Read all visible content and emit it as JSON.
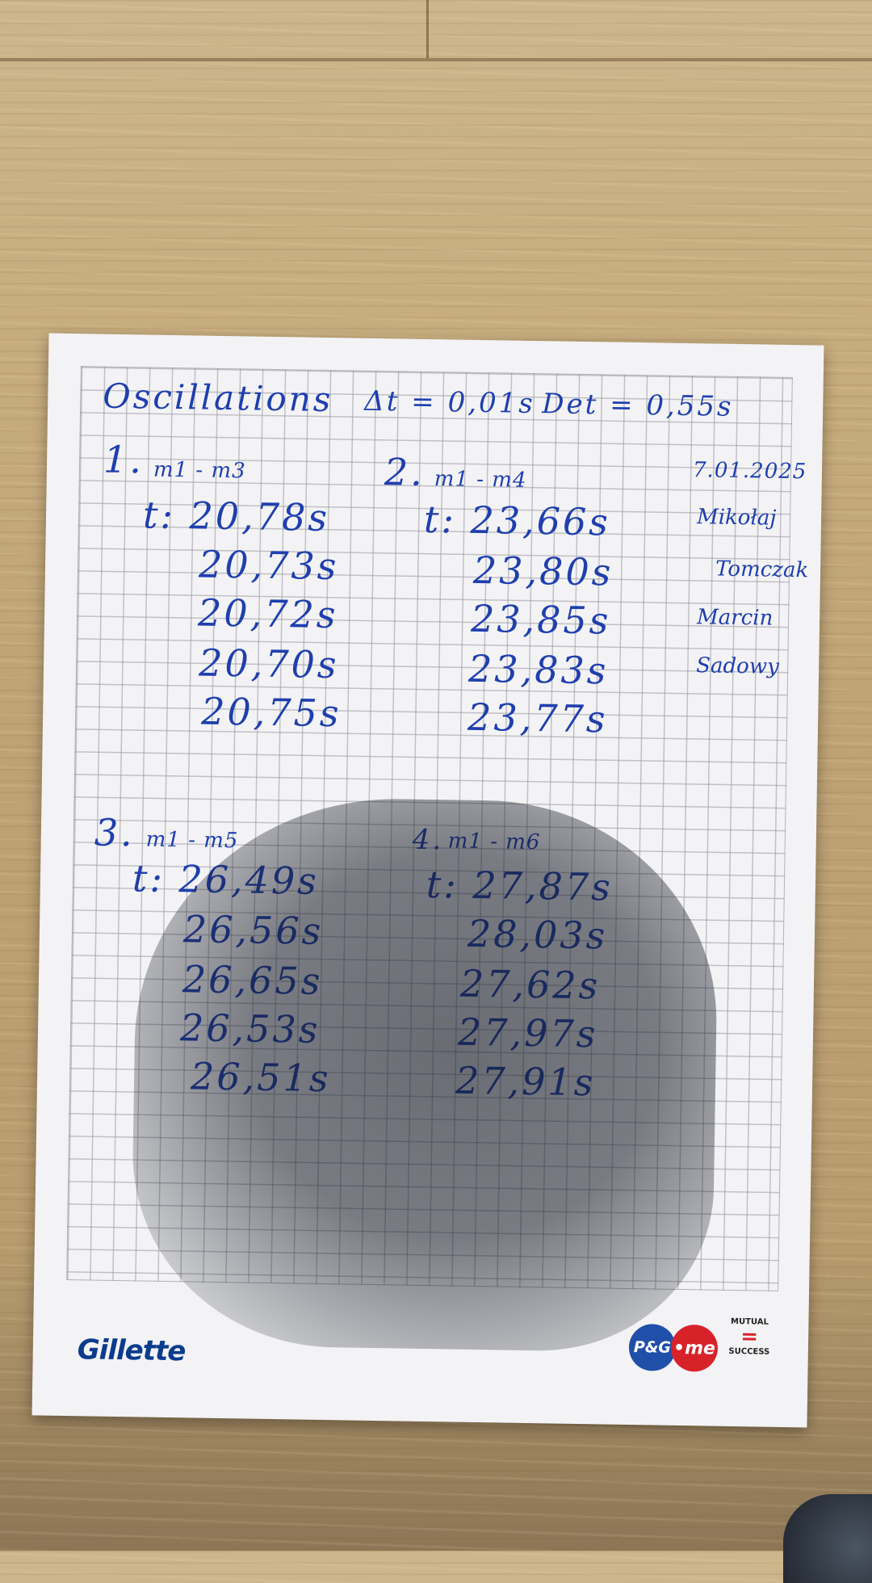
{
  "sheet": {
    "title": "Oscillations",
    "uncertainty_t": "Δt = 0,01s",
    "uncertainty_det": "Det = 0,55s",
    "date": "7.01.2025",
    "names": [
      "Mikołaj",
      "Tomczak",
      "Marcin",
      "Sadowy"
    ],
    "sections": [
      {
        "number": "1.",
        "masses": "m1 - m3",
        "times": [
          "t: 20,78s",
          "20,73s",
          "20,72s",
          "20,70s",
          "20,75s"
        ]
      },
      {
        "number": "2.",
        "masses": "m1 - m4",
        "times": [
          "t: 23,66s",
          "23,80s",
          "23,85s",
          "23,83s",
          "23,77s"
        ]
      },
      {
        "number": "3.",
        "masses": "m1 - m5",
        "times": [
          "t: 26,49s",
          "26,56s",
          "26,65s",
          "26,53s",
          "26,51s"
        ]
      },
      {
        "number": "4.",
        "masses": "m1 - m6",
        "times": [
          "t: 27,87s",
          "28,03s",
          "27,62s",
          "27,97s",
          "27,91s"
        ]
      }
    ]
  },
  "branding": {
    "gillette": "Gillette",
    "pg": "P&G",
    "me": "•me",
    "mutual_top": "MUTUAL",
    "mutual_bottom": "SUCCESS",
    "brand_blue": "#1f4fa8",
    "brand_red": "#d8222a"
  },
  "colors": {
    "ink": "#1f3fae",
    "paper": "#f3f3f5",
    "wood": "#c7ad7f"
  }
}
